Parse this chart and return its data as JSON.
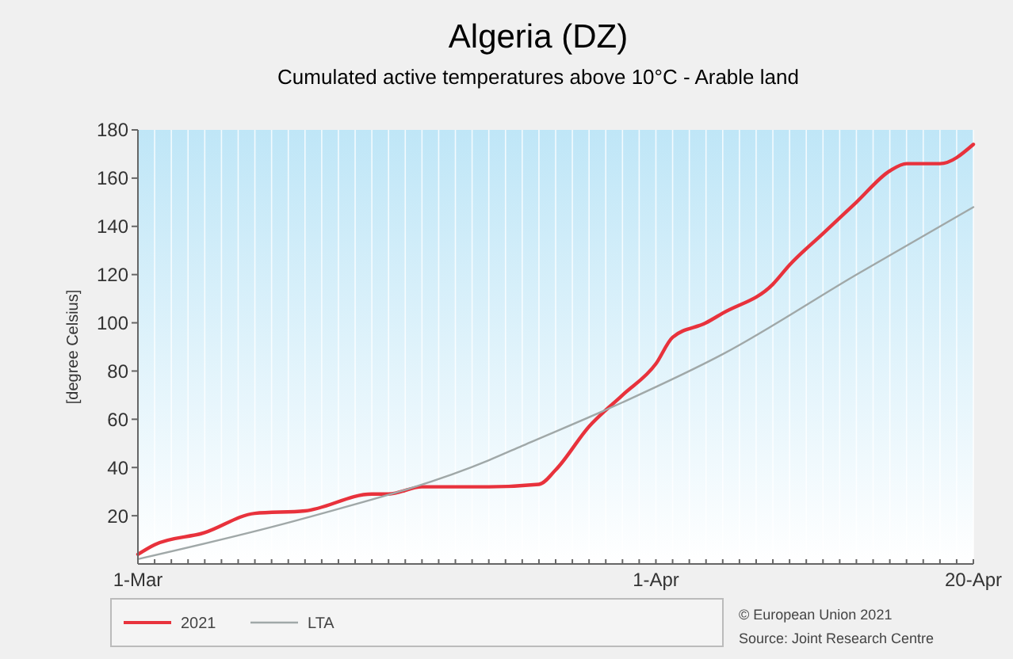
{
  "chart_data": {
    "type": "line",
    "title": "Algeria (DZ)",
    "subtitle": "Cumulated active temperatures above 10°C - Arable land",
    "ylabel": "[degree Celsius]",
    "xlim": [
      "2021-03-01",
      "2021-04-20"
    ],
    "xticks": [
      {
        "value": "2021-03-01",
        "label": "1-Mar"
      },
      {
        "value": "2021-04-01",
        "label": "1-Apr"
      },
      {
        "value": "2021-04-20",
        "label": "20-Apr"
      }
    ],
    "ylim": [
      0,
      180
    ],
    "yticks": [
      20,
      40,
      60,
      80,
      100,
      120,
      140,
      160,
      180
    ],
    "grid": "x",
    "legend": "bottom",
    "line_style": "solid",
    "marker": "none",
    "series": [
      {
        "name": "2021",
        "color": "#e8323c",
        "x": [
          "2021-03-01",
          "2021-03-02",
          "2021-03-05",
          "2021-03-08",
          "2021-03-11",
          "2021-03-15",
          "2021-03-16",
          "2021-03-18",
          "2021-03-22",
          "2021-03-25",
          "2021-03-26",
          "2021-03-28",
          "2021-03-30",
          "2021-04-01",
          "2021-04-02",
          "2021-04-04",
          "2021-04-05",
          "2021-04-08",
          "2021-04-09",
          "2021-04-11",
          "2021-04-13",
          "2021-04-15",
          "2021-04-16",
          "2021-04-18",
          "2021-04-20"
        ],
        "values": [
          4,
          8,
          13,
          21,
          22,
          29,
          29,
          32,
          32,
          33,
          39,
          57,
          70,
          83,
          94,
          100,
          104,
          116,
          124,
          137,
          150,
          163,
          166,
          166,
          174
        ]
      },
      {
        "name": "LTA",
        "color": "#a0a8a8",
        "x": [
          "2021-03-01",
          "2021-03-11",
          "2021-03-22",
          "2021-03-24",
          "2021-03-30",
          "2021-04-05",
          "2021-04-13",
          "2021-04-20"
        ],
        "values": [
          2,
          19,
          43,
          49,
          67,
          87,
          120,
          148
        ]
      }
    ],
    "annotations": [
      "© European Union 2021",
      "Source: Joint Research Centre"
    ]
  }
}
